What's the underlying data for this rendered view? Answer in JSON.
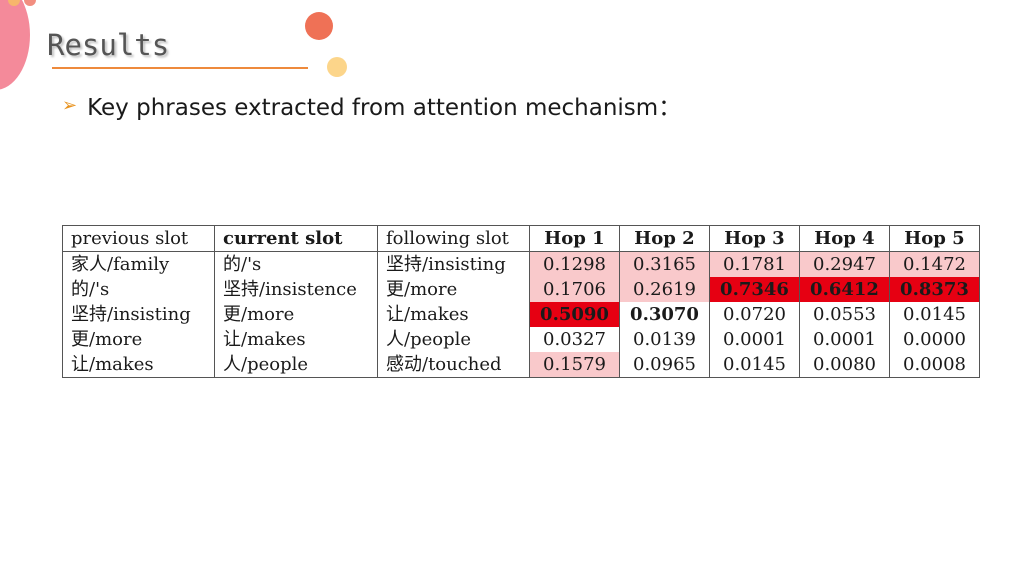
{
  "slide": {
    "title": "Results",
    "bullet": "Key phrases extracted from attention mechanism："
  },
  "colors": {
    "light_highlight": "#f9c9cb",
    "strong_highlight": "#e60012",
    "title_rule": "#ee8a3c",
    "bullet_arrow": "#e8931f"
  },
  "table": {
    "headers": [
      "previous slot",
      "current slot",
      "following slot",
      "Hop 1",
      "Hop 2",
      "Hop 3",
      "Hop 4",
      "Hop 5"
    ],
    "rows": [
      [
        "家人/family",
        "的/'s",
        "坚持/insisting",
        "0.1298",
        "0.3165",
        "0.1781",
        "0.2947",
        "0.1472"
      ],
      [
        "的/'s",
        "坚持/insistence",
        "更/more",
        "0.1706",
        "0.2619",
        "0.7346",
        "0.6412",
        "0.8373"
      ],
      [
        "坚持/insisting",
        "更/more",
        "让/makes",
        "0.5090",
        "0.3070",
        "0.0720",
        "0.0553",
        "0.0145"
      ],
      [
        "更/more",
        "让/makes",
        "人/people",
        "0.0327",
        "0.0139",
        "0.0001",
        "0.0001",
        "0.0000"
      ],
      [
        "让/makes",
        "人/people",
        "感动/touched",
        "0.1579",
        "0.0965",
        "0.0145",
        "0.0080",
        "0.0008"
      ]
    ],
    "highlight_levels": [
      [
        "",
        "",
        "",
        "light",
        "light",
        "light",
        "light",
        "light"
      ],
      [
        "",
        "",
        "",
        "light",
        "light",
        "strong",
        "strong",
        "strong"
      ],
      [
        "",
        "",
        "",
        "strong",
        "bold",
        "",
        "",
        ""
      ],
      [
        "",
        "",
        "",
        "",
        "",
        "",
        "",
        ""
      ],
      [
        "",
        "",
        "",
        "light",
        "",
        "",
        "",
        ""
      ]
    ]
  }
}
